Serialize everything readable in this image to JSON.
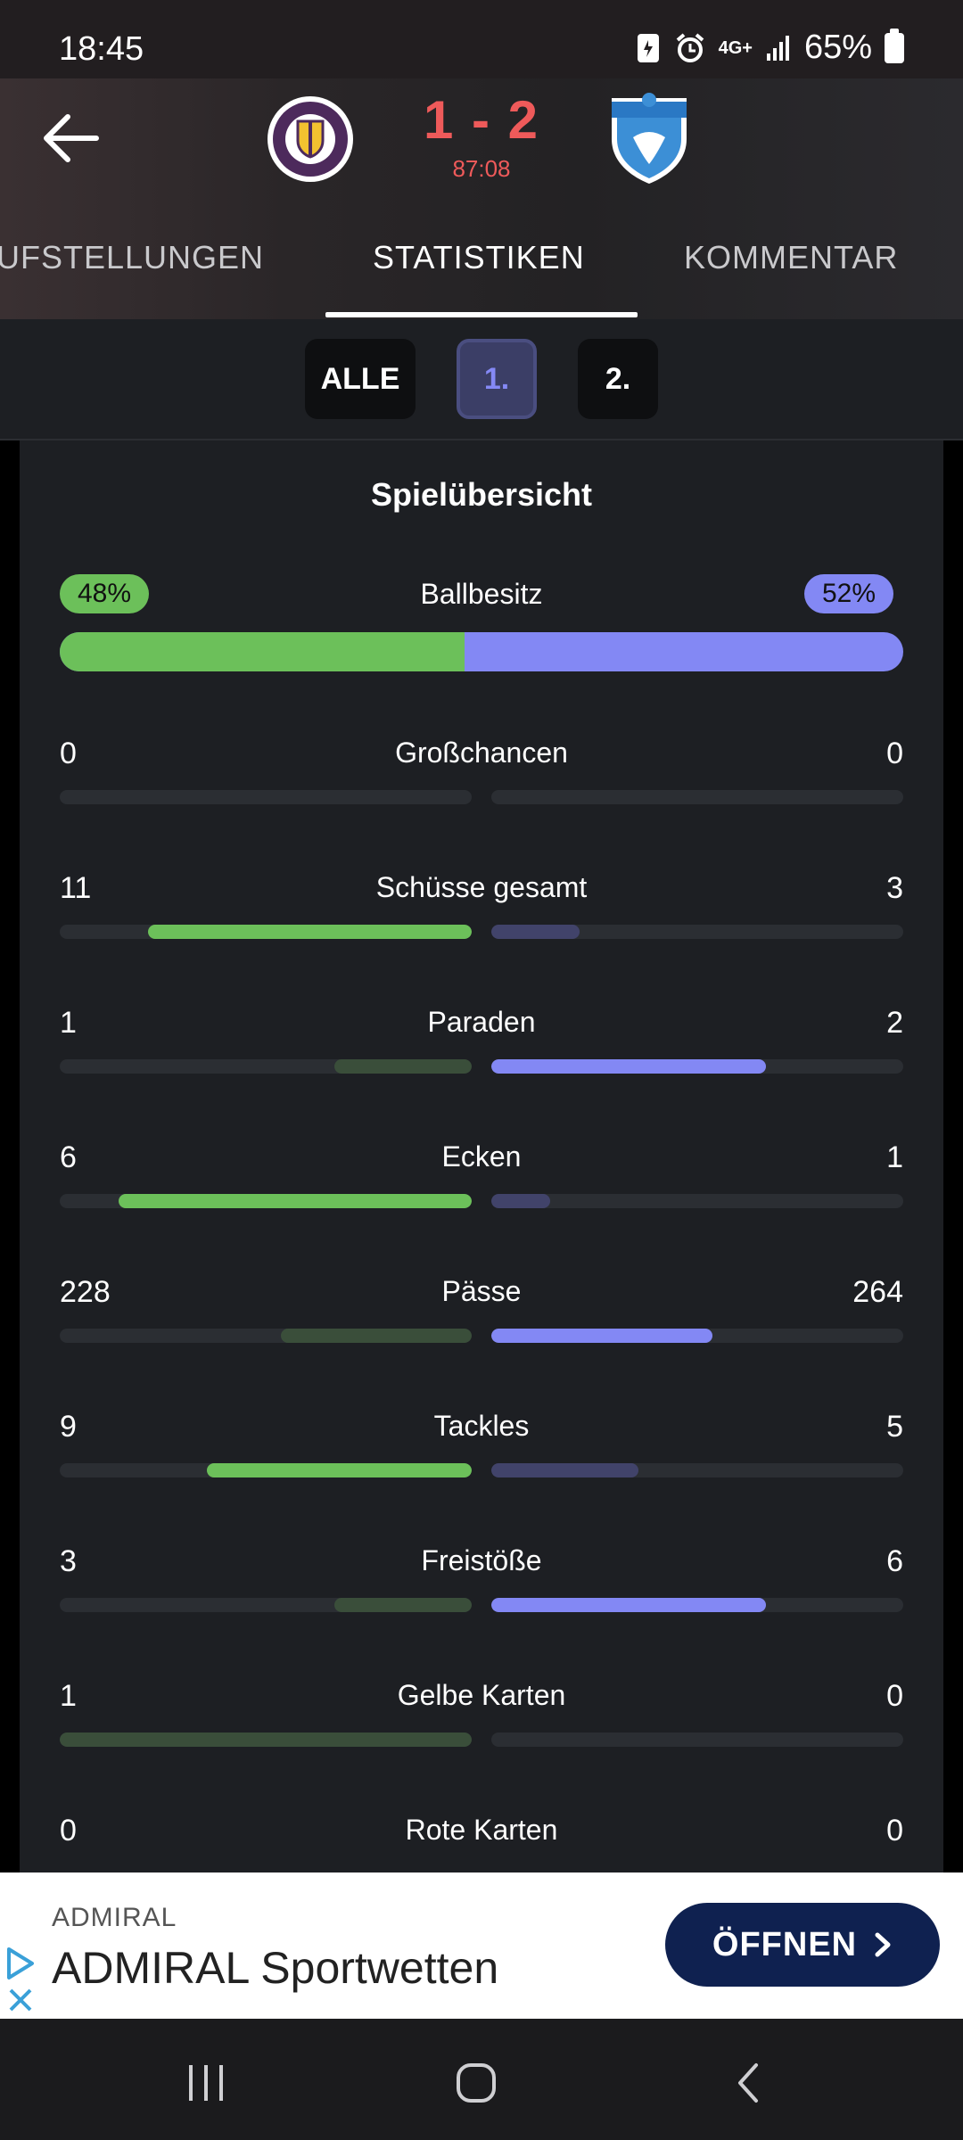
{
  "status_bar": {
    "time": "18:45",
    "network": "4G+",
    "battery": "65%"
  },
  "match": {
    "score": "1 - 2",
    "clock": "87:08",
    "home_crest_text": "AUSTRIA KLAGENFURT",
    "away_crest_text": "TSV Hartberg"
  },
  "tabs": [
    {
      "label": "UFSTELLUNGEN"
    },
    {
      "label": "STATISTIKEN"
    },
    {
      "label": "KOMMENTAR"
    }
  ],
  "period_filter": {
    "all": "ALLE",
    "first": "1.",
    "second": "2.",
    "selected": "1."
  },
  "colors": {
    "home": "#6cc05a",
    "away": "#8388f4",
    "accent_red": "#ee5a5a"
  },
  "summary": {
    "title": "Spielübersicht",
    "possession": {
      "label": "Ballbesitz",
      "home": "48%",
      "away": "52%",
      "home_fraction": 0.48
    },
    "stats": [
      {
        "name": "Großchancen",
        "home": "0",
        "away": "0",
        "home_fraction": 0,
        "away_fraction": 0,
        "leader": "none"
      },
      {
        "name": "Schüsse gesamt",
        "home": "11",
        "away": "3",
        "home_fraction": 0.786,
        "away_fraction": 0.214,
        "leader": "home"
      },
      {
        "name": "Paraden",
        "home": "1",
        "away": "2",
        "home_fraction": 0.333,
        "away_fraction": 0.667,
        "leader": "away"
      },
      {
        "name": "Ecken",
        "home": "6",
        "away": "1",
        "home_fraction": 0.857,
        "away_fraction": 0.143,
        "leader": "home"
      },
      {
        "name": "Pässe",
        "home": "228",
        "away": "264",
        "home_fraction": 0.463,
        "away_fraction": 0.537,
        "leader": "away"
      },
      {
        "name": "Tackles",
        "home": "9",
        "away": "5",
        "home_fraction": 0.643,
        "away_fraction": 0.357,
        "leader": "home"
      },
      {
        "name": "Freistöße",
        "home": "3",
        "away": "6",
        "home_fraction": 0.333,
        "away_fraction": 0.667,
        "leader": "away"
      },
      {
        "name": "Gelbe Karten",
        "home": "1",
        "away": "0",
        "home_fraction": 1,
        "away_fraction": 0,
        "leader": "none"
      },
      {
        "name": "Rote Karten",
        "home": "0",
        "away": "0",
        "home_fraction": 0,
        "away_fraction": 0,
        "leader": "none"
      }
    ]
  },
  "ad": {
    "brand": "ADMIRAL",
    "title": "ADMIRAL Sportwetten",
    "cta": "ÖFFNEN"
  },
  "icons": {
    "back": "arrow-left-icon",
    "ad_info": "play-triangle-icon",
    "ad_close": "close-icon",
    "nav_recents": "recents-icon",
    "nav_home": "home-icon",
    "nav_back": "chevron-left-icon"
  }
}
